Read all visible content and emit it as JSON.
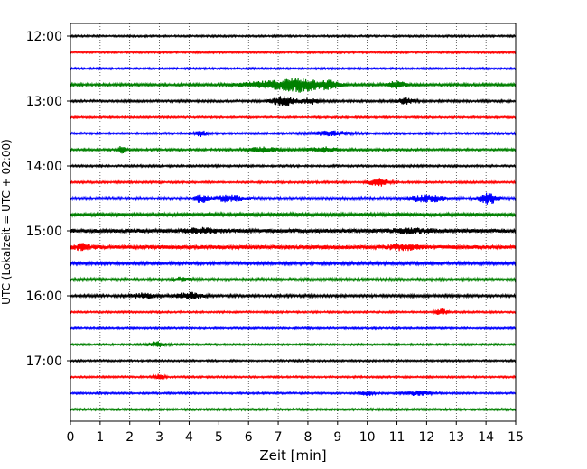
{
  "chart_data": {
    "type": "line",
    "chart_kind": "helicorder",
    "xlabel": "Zeit  [min]",
    "ylabel": "UTC (Lokalzeit = UTC + 02:00)",
    "xlim": [
      0,
      15
    ],
    "x_ticks": [
      "0",
      "1",
      "2",
      "3",
      "4",
      "5",
      "6",
      "7",
      "8",
      "9",
      "10",
      "11",
      "12",
      "13",
      "14",
      "15"
    ],
    "y_ticks": [
      "12:00",
      "13:00",
      "14:00",
      "15:00",
      "16:00",
      "17:00"
    ],
    "trace_interval_min": 15,
    "start_time": "12:00",
    "trace_colors": [
      "#000000",
      "#ff0000",
      "#0000ff",
      "#008000"
    ],
    "vertical_grid": true,
    "grid_style": "dotted",
    "traces": [
      {
        "start": "12:00",
        "noise": 1.0,
        "events": []
      },
      {
        "start": "12:15",
        "noise": 1.0,
        "events": []
      },
      {
        "start": "12:30",
        "noise": 1.0,
        "events": []
      },
      {
        "start": "12:45",
        "noise": 1.4,
        "events": [
          [
            6.8,
            1.0,
            3.5
          ],
          [
            7.8,
            0.6,
            6
          ],
          [
            8.7,
            0.4,
            4
          ],
          [
            11.0,
            0.3,
            3.5
          ]
        ]
      },
      {
        "start": "13:00",
        "noise": 1.2,
        "events": [
          [
            7.2,
            0.4,
            5
          ],
          [
            8.1,
            0.3,
            3
          ],
          [
            11.3,
            0.3,
            3
          ]
        ]
      },
      {
        "start": "13:15",
        "noise": 1.0,
        "events": []
      },
      {
        "start": "13:30",
        "noise": 1.1,
        "events": [
          [
            4.4,
            0.2,
            3
          ],
          [
            8.8,
            0.6,
            2.5
          ]
        ]
      },
      {
        "start": "13:45",
        "noise": 1.2,
        "events": [
          [
            1.75,
            0.1,
            5
          ],
          [
            6.5,
            0.5,
            2.5
          ],
          [
            8.5,
            0.5,
            2.5
          ]
        ]
      },
      {
        "start": "14:00",
        "noise": 1.1,
        "events": []
      },
      {
        "start": "14:15",
        "noise": 1.1,
        "events": [
          [
            10.4,
            0.3,
            5
          ]
        ]
      },
      {
        "start": "14:30",
        "noise": 1.5,
        "events": [
          [
            4.4,
            0.2,
            4
          ],
          [
            5.3,
            0.6,
            3
          ],
          [
            12.0,
            0.6,
            3.5
          ],
          [
            14.1,
            0.3,
            6
          ]
        ]
      },
      {
        "start": "14:45",
        "noise": 1.8,
        "events": []
      },
      {
        "start": "15:00",
        "noise": 2.2,
        "events": [
          [
            4.5,
            0.6,
            2
          ],
          [
            11.5,
            0.6,
            2
          ]
        ]
      },
      {
        "start": "15:15",
        "noise": 2.2,
        "events": [
          [
            0.4,
            0.3,
            3
          ],
          [
            11.2,
            0.5,
            2.5
          ]
        ]
      },
      {
        "start": "15:30",
        "noise": 1.6,
        "events": []
      },
      {
        "start": "15:45",
        "noise": 1.5,
        "events": [
          [
            3.7,
            0.3,
            2
          ]
        ]
      },
      {
        "start": "16:00",
        "noise": 1.4,
        "events": [
          [
            2.5,
            0.4,
            2.5
          ],
          [
            4.0,
            0.4,
            3.5
          ]
        ]
      },
      {
        "start": "16:15",
        "noise": 1.0,
        "events": [
          [
            12.5,
            0.2,
            3
          ]
        ]
      },
      {
        "start": "16:30",
        "noise": 1.0,
        "events": []
      },
      {
        "start": "16:45",
        "noise": 1.0,
        "events": [
          [
            2.9,
            0.3,
            3
          ]
        ]
      },
      {
        "start": "17:00",
        "noise": 1.0,
        "events": []
      },
      {
        "start": "17:15",
        "noise": 1.0,
        "events": [
          [
            3.0,
            0.2,
            2.5
          ]
        ]
      },
      {
        "start": "17:30",
        "noise": 1.0,
        "events": [
          [
            10.0,
            0.2,
            2.5
          ],
          [
            11.7,
            0.4,
            2.5
          ]
        ]
      },
      {
        "start": "17:45",
        "noise": 1.1,
        "events": []
      }
    ]
  }
}
